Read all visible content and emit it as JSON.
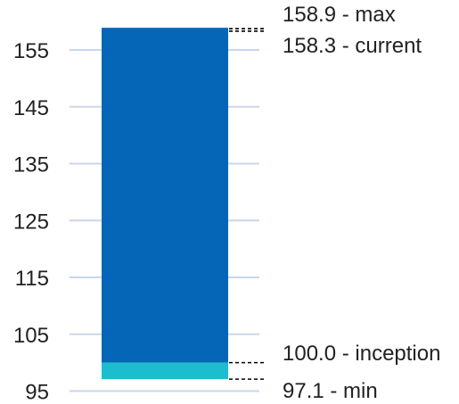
{
  "chart_data": {
    "type": "bar",
    "title": "",
    "xlabel": "",
    "ylabel": "",
    "ylim": [
      95,
      160
    ],
    "y_ticks": [
      "95",
      "105",
      "115",
      "125",
      "135",
      "145",
      "155"
    ],
    "series": [
      {
        "name": "",
        "from": 100.0,
        "to": 158.9,
        "color": "#0565b6"
      },
      {
        "name": "",
        "from": 97.1,
        "to": 100.0,
        "color": "#1bbdcf"
      }
    ],
    "annotations": [
      {
        "value": 158.9,
        "label": "158.9 - max"
      },
      {
        "value": 158.3,
        "label": "158.3 - current"
      },
      {
        "value": 100.0,
        "label": "100.0 - inception"
      },
      {
        "value": 97.1,
        "label": "97.1 - min"
      }
    ],
    "grid": true,
    "colors": {
      "grid": "#c9d6ee",
      "text": "#222222",
      "dash": "#000000"
    }
  }
}
